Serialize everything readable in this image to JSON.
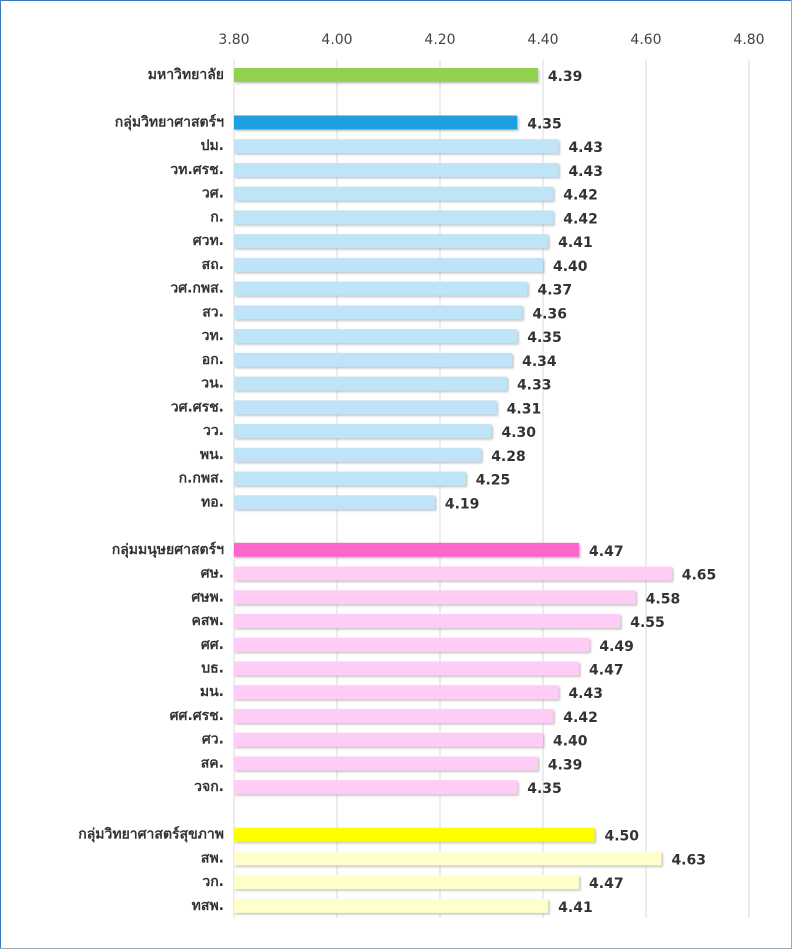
{
  "chart_data": {
    "type": "bar",
    "orientation": "horizontal",
    "categories": [
      "มหาวิทยาลัย",
      null,
      "กลุ่มวิทยาศาสตร์ฯ",
      "ปม.",
      "วท.ศรช.",
      "วศ.",
      "ก.",
      "ศวท.",
      "สถ.",
      "วศ.กพส.",
      "สว.",
      "วท.",
      "อก.",
      "วน.",
      "วศ.ศรช.",
      "วว.",
      "พน.",
      "ก.กพส.",
      "ทอ.",
      null,
      "กลุ่มมนุษยศาสตร์ฯ",
      "ศษ.",
      "ศษพ.",
      "คสพ.",
      "ศศ.",
      "บธ.",
      "มน.",
      "ศศ.ศรช.",
      "ศว.",
      "สค.",
      "วจก.",
      null,
      "กลุ่มวิทยาศาสตร์สุขภาพ",
      "สพ.",
      "วก.",
      "ทสพ."
    ],
    "values": [
      4.39,
      null,
      4.35,
      4.43,
      4.43,
      4.42,
      4.42,
      4.41,
      4.4,
      4.37,
      4.36,
      4.35,
      4.34,
      4.33,
      4.31,
      4.3,
      4.28,
      4.25,
      4.19,
      null,
      4.47,
      4.65,
      4.58,
      4.55,
      4.49,
      4.47,
      4.43,
      4.42,
      4.4,
      4.39,
      4.35,
      null,
      4.5,
      4.63,
      4.47,
      4.41
    ],
    "value_labels": [
      "4.39",
      null,
      "4.35",
      "4.43",
      "4.43",
      "4.42",
      "4.42",
      "4.41",
      "4.40",
      "4.37",
      "4.36",
      "4.35",
      "4.34",
      "4.33",
      "4.31",
      "4.30",
      "4.28",
      "4.25",
      "4.19",
      null,
      "4.47",
      "4.65",
      "4.58",
      "4.55",
      "4.49",
      "4.47",
      "4.43",
      "4.42",
      "4.40",
      "4.39",
      "4.35",
      null,
      "4.50",
      "4.63",
      "4.47",
      "4.41"
    ],
    "colors": [
      "#92d050",
      null,
      "#1ea0e0",
      "#bfe3f7",
      "#bfe3f7",
      "#bfe3f7",
      "#bfe3f7",
      "#bfe3f7",
      "#bfe3f7",
      "#bfe3f7",
      "#bfe3f7",
      "#bfe3f7",
      "#bfe3f7",
      "#bfe3f7",
      "#bfe3f7",
      "#bfe3f7",
      "#bfe3f7",
      "#bfe3f7",
      "#bfe3f7",
      null,
      "#ff66cc",
      "#ffccf5",
      "#ffccf5",
      "#ffccf5",
      "#ffccf5",
      "#ffccf5",
      "#ffccf5",
      "#ffccf5",
      "#ffccf5",
      "#ffccf5",
      "#ffccf5",
      null,
      "#ffff00",
      "#ffffcc",
      "#ffffcc",
      "#ffffcc"
    ],
    "xlim": [
      3.8,
      4.8
    ],
    "xticks": [
      {
        "value": 3.8,
        "label": "3.80"
      },
      {
        "value": 4.0,
        "label": "4.00"
      },
      {
        "value": 4.2,
        "label": "4.20"
      },
      {
        "value": 4.4,
        "label": "4.40"
      },
      {
        "value": 4.6,
        "label": "4.60"
      },
      {
        "value": 4.8,
        "label": "4.80"
      }
    ],
    "grid": true
  }
}
